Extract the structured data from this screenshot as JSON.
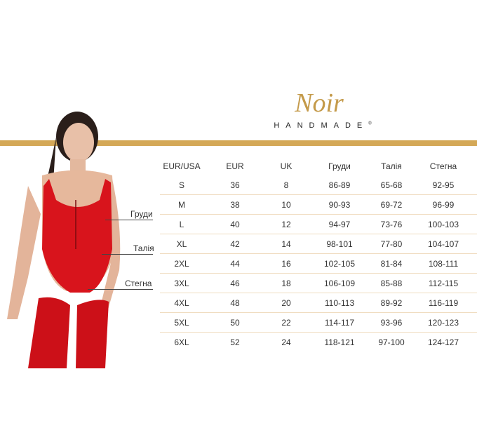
{
  "brand": {
    "script": "Noir",
    "subtitle": "HANDMADE",
    "mark": "®",
    "accent": "#d4a857"
  },
  "measure_labels": [
    "Груди",
    "Талія",
    "Стегна"
  ],
  "table": {
    "headers": [
      "EUR/USA",
      "EUR",
      "UK",
      "Груди",
      "Талія",
      "Стегна"
    ],
    "rows": [
      [
        "S",
        "36",
        "8",
        "86-89",
        "65-68",
        "92-95"
      ],
      [
        "M",
        "38",
        "10",
        "90-93",
        "69-72",
        "96-99"
      ],
      [
        "L",
        "40",
        "12",
        "94-97",
        "73-76",
        "100-103"
      ],
      [
        "XL",
        "42",
        "14",
        "98-101",
        "77-80",
        "104-107"
      ],
      [
        "2XL",
        "44",
        "16",
        "102-105",
        "81-84",
        "108-111"
      ],
      [
        "3XL",
        "46",
        "18",
        "106-109",
        "85-88",
        "112-115"
      ],
      [
        "4XL",
        "48",
        "20",
        "110-113",
        "89-92",
        "116-119"
      ],
      [
        "5XL",
        "50",
        "22",
        "114-117",
        "93-96",
        "120-123"
      ],
      [
        "6XL",
        "52",
        "24",
        "118-121",
        "97-100",
        "124-127"
      ]
    ]
  }
}
